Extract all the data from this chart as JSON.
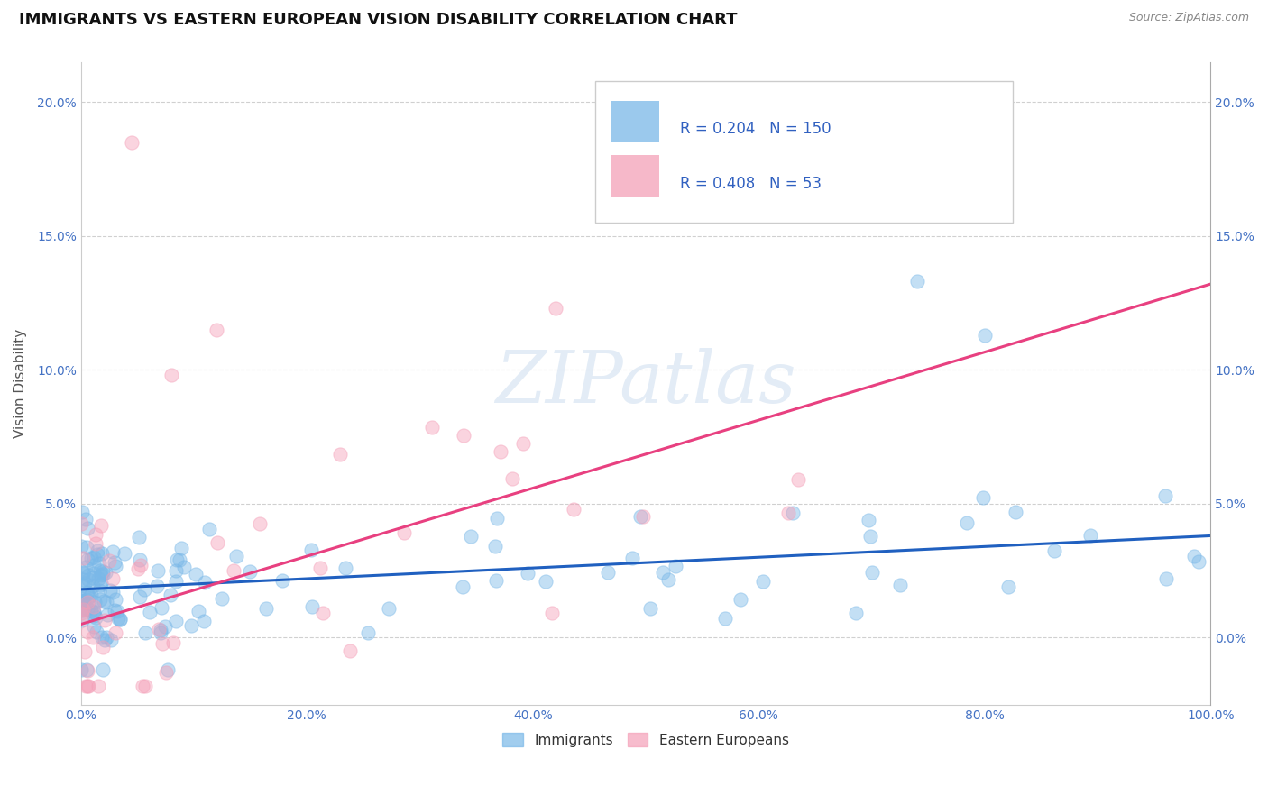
{
  "title": "IMMIGRANTS VS EASTERN EUROPEAN VISION DISABILITY CORRELATION CHART",
  "source": "Source: ZipAtlas.com",
  "ylabel": "Vision Disability",
  "watermark": "ZIPatlas",
  "legend_immigrants": {
    "R": 0.204,
    "N": 150,
    "color": "#7ab8e8"
  },
  "legend_eastern": {
    "R": 0.408,
    "N": 53,
    "color": "#f4a0b8"
  },
  "xlim": [
    0,
    1.0
  ],
  "ylim": [
    -0.025,
    0.215
  ],
  "xticks": [
    0.0,
    0.2,
    0.4,
    0.6,
    0.8,
    1.0
  ],
  "xtick_labels": [
    "0.0%",
    "20.0%",
    "40.0%",
    "60.0%",
    "80.0%",
    "100.0%"
  ],
  "yticks": [
    0.0,
    0.05,
    0.1,
    0.15,
    0.2
  ],
  "ytick_labels": [
    "0.0%",
    "5.0%",
    "10.0%",
    "15.0%",
    "20.0%"
  ],
  "grid_color": "#d0d0d0",
  "background_color": "#ffffff",
  "title_fontsize": 13,
  "axis_label_fontsize": 11,
  "tick_fontsize": 10,
  "imm_line_y_start": 0.018,
  "imm_line_y_end": 0.038,
  "east_line_y_start": 0.005,
  "east_line_y_end": 0.132,
  "imm_line_color": "#2060c0",
  "east_line_color": "#e84080",
  "scatter_size": 120,
  "scatter_alpha": 0.45,
  "scatter_edge_color": "#7ab8e8",
  "scatter_edge_color_east": "#f4a0b8"
}
